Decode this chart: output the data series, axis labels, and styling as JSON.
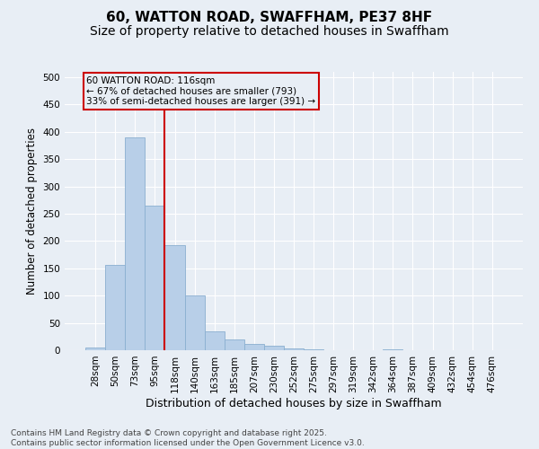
{
  "title": "60, WATTON ROAD, SWAFFHAM, PE37 8HF",
  "subtitle": "Size of property relative to detached houses in Swaffham",
  "xlabel": "Distribution of detached houses by size in Swaffham",
  "ylabel": "Number of detached properties",
  "footer_line1": "Contains HM Land Registry data © Crown copyright and database right 2025.",
  "footer_line2": "Contains public sector information licensed under the Open Government Licence v3.0.",
  "categories": [
    "28sqm",
    "50sqm",
    "73sqm",
    "95sqm",
    "118sqm",
    "140sqm",
    "163sqm",
    "185sqm",
    "207sqm",
    "230sqm",
    "252sqm",
    "275sqm",
    "297sqm",
    "319sqm",
    "342sqm",
    "364sqm",
    "387sqm",
    "409sqm",
    "432sqm",
    "454sqm",
    "476sqm"
  ],
  "values": [
    5,
    157,
    390,
    265,
    193,
    101,
    35,
    20,
    12,
    9,
    4,
    1,
    0,
    0,
    0,
    1,
    0,
    0,
    0,
    0,
    0
  ],
  "bar_color": "#b8cfe8",
  "bar_edge_color": "#8aafd0",
  "background_color": "#e8eef5",
  "grid_color": "#ffffff",
  "vline_color": "#cc0000",
  "vline_x_index": 3.5,
  "annotation_text": "60 WATTON ROAD: 116sqm\n← 67% of detached houses are smaller (793)\n33% of semi-detached houses are larger (391) →",
  "annotation_box_color": "#cc0000",
  "ylim": [
    0,
    510
  ],
  "yticks": [
    0,
    50,
    100,
    150,
    200,
    250,
    300,
    350,
    400,
    450,
    500
  ],
  "title_fontsize": 11,
  "subtitle_fontsize": 10,
  "xlabel_fontsize": 9,
  "ylabel_fontsize": 8.5,
  "tick_fontsize": 7.5,
  "annotation_fontsize": 7.5,
  "footer_fontsize": 6.5
}
